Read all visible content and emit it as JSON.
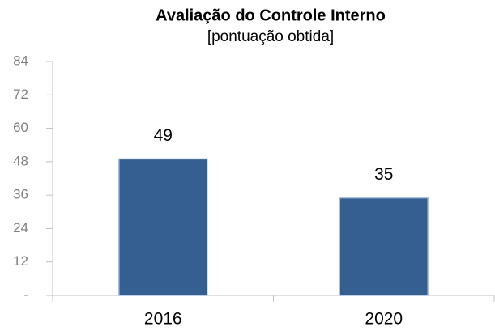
{
  "chart_data": {
    "type": "bar",
    "title": "Avaliação do Controle Interno",
    "subtitle": "[pontuação obtida]",
    "categories": [
      "2016",
      "2020"
    ],
    "values": [
      49,
      35
    ],
    "color": "#365f91",
    "ylim": [
      0,
      84
    ],
    "yticks": [
      {
        "value": 0,
        "label": "-"
      },
      12,
      24,
      36,
      48,
      60,
      72,
      84
    ]
  }
}
